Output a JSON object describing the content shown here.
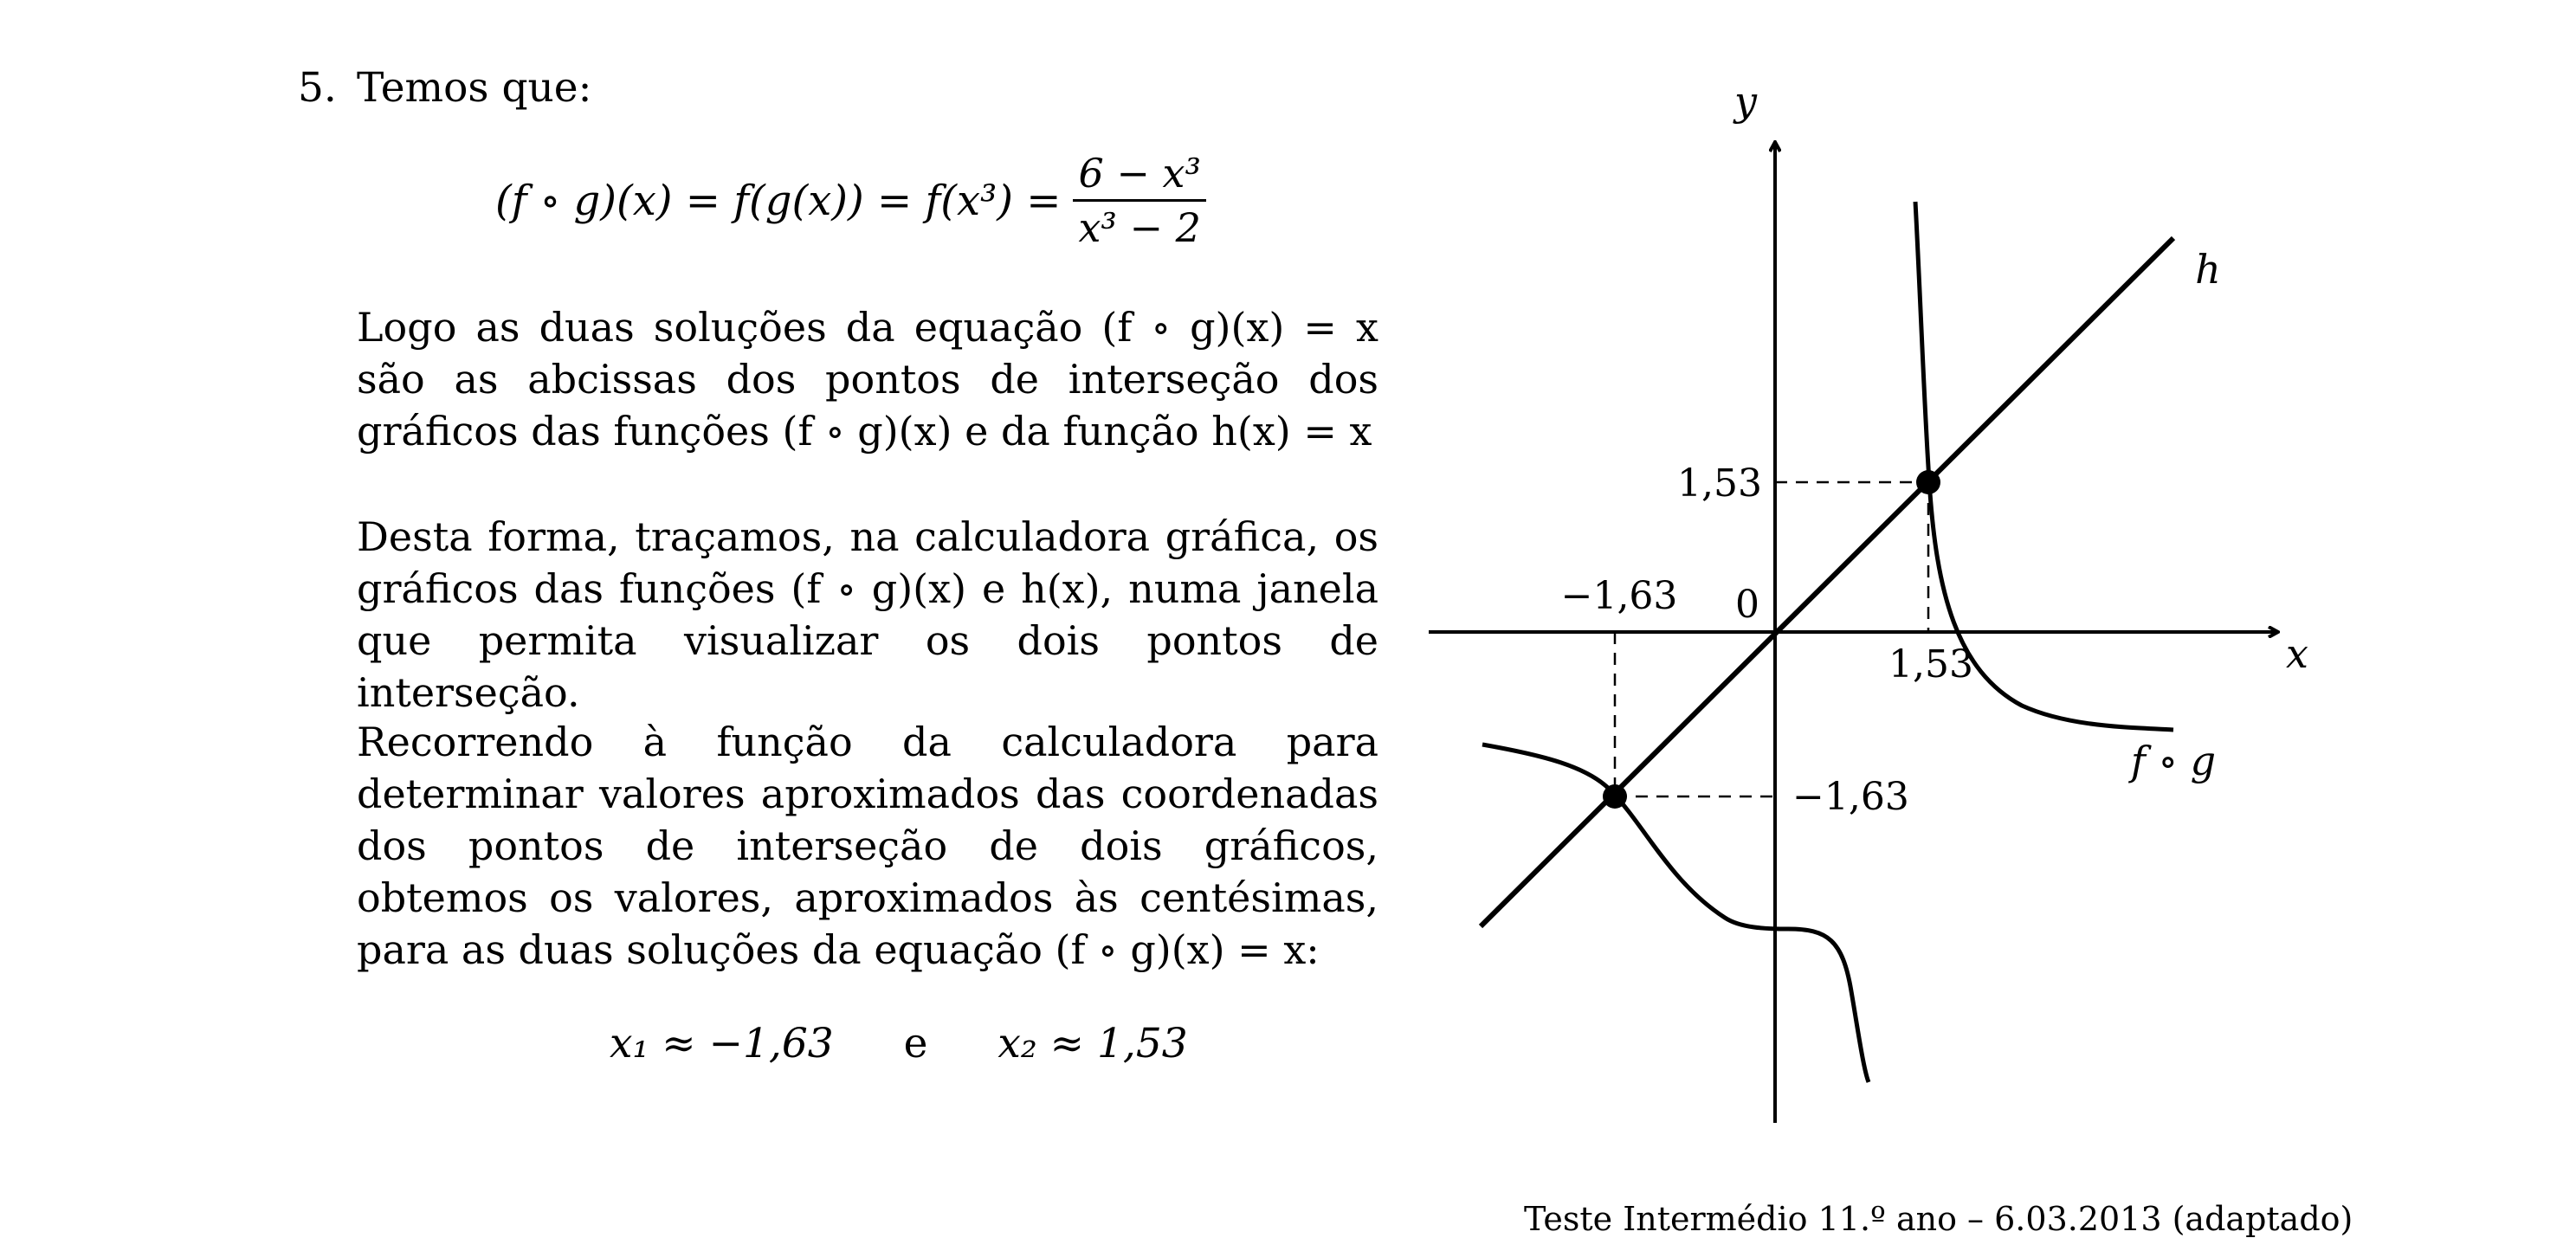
{
  "question": {
    "number": "5.",
    "intro": "Temos que:"
  },
  "equation_composition": {
    "lhs": "(f ∘ g)(x) = f(g(x)) = f(x³) =",
    "numerator": "6 − x³",
    "denominator": "x³ − 2"
  },
  "paragraphs": [
    "Logo as duas soluções da equação (f ∘ g)(x) = x são as abcissas dos pontos de interseção dos gráficos das funções (f ∘ g)(x) e da função h(x) = x",
    "Desta forma, traçamos, na calculadora gráfica, os gráficos das funções (f ∘ g)(x) e h(x), numa janela que permita visualizar os dois pontos de interseção.",
    "Recorrendo à função da calculadora para determinar valores aproximados das coordenadas dos pontos de interseção de dois gráficos, obtemos os valores, aproximados às centésimas, para as duas soluções da equação (f ∘ g)(x) = x:"
  ],
  "result": {
    "x1": "x₁ ≈ −1,63",
    "conjunction": "e",
    "x2": "x₂ ≈ 1,53"
  },
  "graph": {
    "axis_x_label": "x",
    "axis_y_label": "y",
    "origin_label": "0",
    "curve_h_label": "h",
    "curve_fog_label": "f ∘ g",
    "tick_x_pos": "1,53",
    "tick_x_neg": "−1,63",
    "tick_y_pos": "1,53",
    "tick_y_neg": "−1,63",
    "intersections": [
      {
        "x": 1.53,
        "y": 1.53
      },
      {
        "x": -1.63,
        "y": -1.63
      }
    ]
  },
  "footer": "Teste Intermédio 11.º ano – 6.03.2013 (adaptado)"
}
